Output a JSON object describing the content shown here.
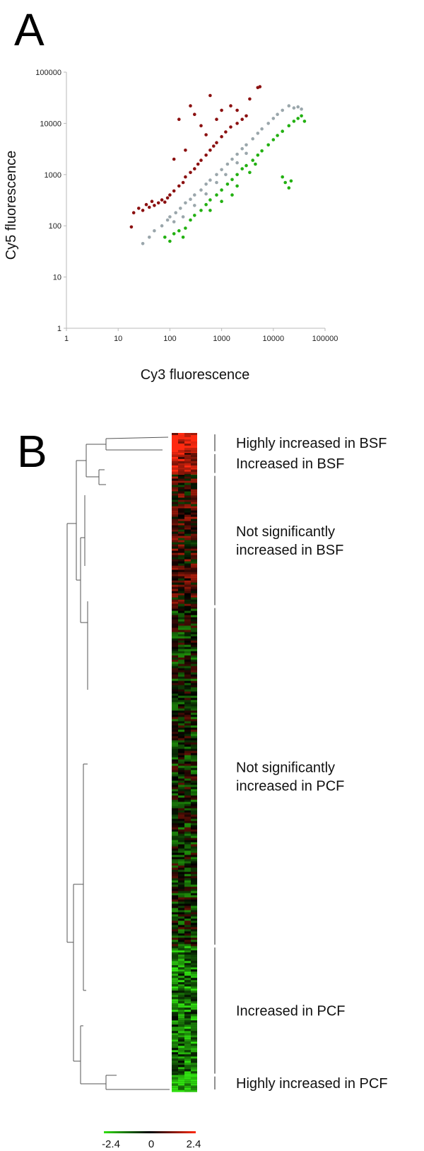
{
  "panels": {
    "a": {
      "letter": "A"
    },
    "b": {
      "letter": "B"
    }
  },
  "colors": {
    "increased_bsf": "#8b1010",
    "not_significant": "#9aa6ab",
    "increased_pcf": "#22b011",
    "heat_red": "#ff2a10",
    "heat_green": "#30e010",
    "heat_black": "#000000",
    "axis": "#b8b8b8"
  },
  "chart_data": [
    {
      "type": "scatter",
      "title": "",
      "xlabel": "Cy3 fluorescence",
      "ylabel": "Cy5 fluorescence",
      "xscale": "log",
      "yscale": "log",
      "xlim": [
        1,
        100000
      ],
      "ylim": [
        1,
        100000
      ],
      "x_ticks": [
        "1",
        "10",
        "100",
        "1000",
        "10000",
        "100000"
      ],
      "y_ticks": [
        "1",
        "10",
        "100",
        "1000",
        "10000",
        "100000"
      ],
      "grid": false,
      "series": [
        {
          "color": "#8b1010",
          "points": [
            [
              20,
              180
            ],
            [
              25,
              220
            ],
            [
              30,
              200
            ],
            [
              35,
              260
            ],
            [
              40,
              230
            ],
            [
              45,
              300
            ],
            [
              50,
              250
            ],
            [
              60,
              280
            ],
            [
              70,
              320
            ],
            [
              80,
              290
            ],
            [
              90,
              350
            ],
            [
              100,
              400
            ],
            [
              120,
              480
            ],
            [
              150,
              600
            ],
            [
              180,
              700
            ],
            [
              200,
              900
            ],
            [
              250,
              1100
            ],
            [
              300,
              1300
            ],
            [
              350,
              1600
            ],
            [
              400,
              1900
            ],
            [
              500,
              2400
            ],
            [
              600,
              3000
            ],
            [
              700,
              3600
            ],
            [
              800,
              4200
            ],
            [
              1000,
              5500
            ],
            [
              1200,
              6800
            ],
            [
              1500,
              8500
            ],
            [
              2000,
              10000
            ],
            [
              2500,
              12000
            ],
            [
              3000,
              14000
            ],
            [
              400,
              9000
            ],
            [
              600,
              35000
            ],
            [
              250,
              22000
            ],
            [
              300,
              15000
            ],
            [
              5000,
              50000
            ],
            [
              5500,
              52000
            ],
            [
              1000,
              18000
            ],
            [
              1500,
              22000
            ],
            [
              800,
              12000
            ],
            [
              150,
              12000
            ],
            [
              120,
              2000
            ],
            [
              200,
              3000
            ],
            [
              500,
              6000
            ],
            [
              3500,
              30000
            ],
            [
              2000,
              18000
            ],
            [
              18,
              95
            ]
          ]
        },
        {
          "color": "#9aa6ab",
          "points": [
            [
              30,
              45
            ],
            [
              40,
              60
            ],
            [
              50,
              80
            ],
            [
              70,
              100
            ],
            [
              90,
              130
            ],
            [
              100,
              150
            ],
            [
              130,
              180
            ],
            [
              160,
              220
            ],
            [
              200,
              280
            ],
            [
              250,
              330
            ],
            [
              300,
              400
            ],
            [
              400,
              500
            ],
            [
              500,
              650
            ],
            [
              600,
              780
            ],
            [
              800,
              1000
            ],
            [
              1000,
              1250
            ],
            [
              1300,
              1600
            ],
            [
              1600,
              2000
            ],
            [
              2000,
              2500
            ],
            [
              2500,
              3200
            ],
            [
              3000,
              3800
            ],
            [
              4000,
              5000
            ],
            [
              5000,
              6400
            ],
            [
              6000,
              7800
            ],
            [
              8000,
              10000
            ],
            [
              10000,
              12500
            ],
            [
              12000,
              15000
            ],
            [
              15000,
              18000
            ],
            [
              20000,
              22000
            ],
            [
              25000,
              20000
            ],
            [
              30000,
              21000
            ],
            [
              35000,
              19000
            ],
            [
              120,
              120
            ],
            [
              180,
              150
            ],
            [
              300,
              250
            ],
            [
              500,
              420
            ],
            [
              800,
              700
            ],
            [
              1200,
              1000
            ],
            [
              2000,
              1700
            ],
            [
              3000,
              2600
            ]
          ]
        },
        {
          "color": "#22b011",
          "points": [
            [
              80,
              60
            ],
            [
              100,
              50
            ],
            [
              120,
              70
            ],
            [
              150,
              80
            ],
            [
              180,
              60
            ],
            [
              200,
              90
            ],
            [
              250,
              130
            ],
            [
              300,
              160
            ],
            [
              400,
              200
            ],
            [
              500,
              260
            ],
            [
              600,
              320
            ],
            [
              800,
              400
            ],
            [
              1000,
              500
            ],
            [
              1300,
              650
            ],
            [
              1600,
              800
            ],
            [
              2000,
              1000
            ],
            [
              2500,
              1300
            ],
            [
              3000,
              1500
            ],
            [
              4000,
              1900
            ],
            [
              5000,
              2400
            ],
            [
              6000,
              2900
            ],
            [
              8000,
              3800
            ],
            [
              10000,
              4800
            ],
            [
              12000,
              5800
            ],
            [
              15000,
              7000
            ],
            [
              20000,
              9000
            ],
            [
              25000,
              11000
            ],
            [
              30000,
              12500
            ],
            [
              35000,
              14000
            ],
            [
              40000,
              11000
            ],
            [
              15000,
              900
            ],
            [
              17000,
              700
            ],
            [
              20000,
              550
            ],
            [
              22000,
              750
            ],
            [
              4500,
              1600
            ],
            [
              3500,
              1100
            ],
            [
              2000,
              600
            ],
            [
              1000,
              300
            ],
            [
              600,
              200
            ],
            [
              1600,
              400
            ]
          ]
        }
      ]
    },
    {
      "type": "heatmap",
      "title": "",
      "colorbar": {
        "min_label": "-2.4",
        "mid_label": "0",
        "max_label": "2.4",
        "min": -2.4,
        "max": 2.4
      },
      "dendrogram": true,
      "groups": [
        {
          "label_lines": [
            "Highly increased in BSF"
          ],
          "start": 0.0,
          "end": 0.03,
          "mean": 2.2
        },
        {
          "label_lines": [
            "Increased in BSF"
          ],
          "start": 0.03,
          "end": 0.063,
          "mean": 1.6
        },
        {
          "label_lines": [
            "Not significantly",
            "increased in BSF"
          ],
          "start": 0.063,
          "end": 0.264,
          "mean": 0.4
        },
        {
          "label_lines": [
            "Not significantly",
            "increased in PCF"
          ],
          "start": 0.264,
          "end": 0.78,
          "mean": -0.3
        },
        {
          "label_lines": [
            "Increased in PCF"
          ],
          "start": 0.78,
          "end": 0.976,
          "mean": -1.3
        },
        {
          "label_lines": [
            "Highly increased in PCF"
          ],
          "start": 0.976,
          "end": 1.0,
          "mean": -2.2
        }
      ]
    }
  ]
}
